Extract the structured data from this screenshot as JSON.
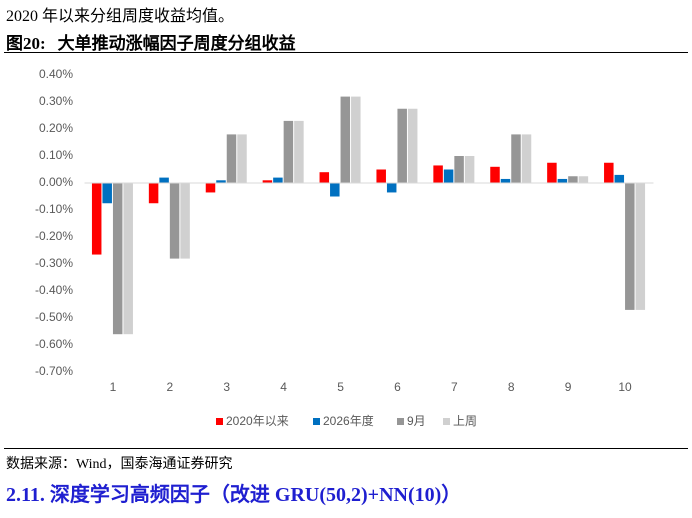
{
  "header": {
    "text": "2020 年以来分组周度收益均值。"
  },
  "figure": {
    "label": "图20:",
    "title": "大单推动涨幅因子周度分组收益"
  },
  "chart_data": {
    "type": "bar",
    "categories": [
      "1",
      "2",
      "3",
      "4",
      "5",
      "6",
      "7",
      "8",
      "9",
      "10"
    ],
    "series": [
      {
        "name": "2020年以来",
        "color": "#ff0000",
        "values": [
          -0.265,
          -0.075,
          -0.035,
          0.01,
          0.04,
          0.05,
          0.065,
          0.06,
          0.075,
          0.075
        ]
      },
      {
        "name": "2026年度",
        "color": "#0070c0",
        "values": [
          -0.075,
          0.02,
          0.01,
          0.02,
          -0.05,
          -0.035,
          0.05,
          0.015,
          0.015,
          0.03
        ]
      },
      {
        "name": "9月",
        "color": "#969696",
        "values": [
          -0.56,
          -0.28,
          0.18,
          0.23,
          0.32,
          0.275,
          0.1,
          0.18,
          0.025,
          -0.47
        ]
      },
      {
        "name": "上周",
        "color": "#d0d0d0",
        "values": [
          -0.56,
          -0.28,
          0.18,
          0.23,
          0.32,
          0.275,
          0.1,
          0.18,
          0.025,
          -0.47
        ]
      }
    ],
    "ylim": [
      -0.7,
      0.4
    ],
    "yticks": [
      {
        "value": 0.4,
        "label": "0.40%"
      },
      {
        "value": 0.3,
        "label": "0.30%"
      },
      {
        "value": 0.2,
        "label": "0.20%"
      },
      {
        "value": 0.1,
        "label": "0.10%"
      },
      {
        "value": 0,
        "label": "0.00%"
      },
      {
        "value": -0.1,
        "label": "-0.10%"
      },
      {
        "value": -0.2,
        "label": "-0.20%"
      },
      {
        "value": -0.3,
        "label": "-0.30%"
      },
      {
        "value": -0.4,
        "label": "-0.40%"
      },
      {
        "value": -0.5,
        "label": "-0.50%"
      },
      {
        "value": -0.6,
        "label": "-0.60%"
      },
      {
        "value": -0.7,
        "label": "-0.70%"
      }
    ],
    "legend": "bottom"
  },
  "source": "数据来源：Wind，国泰海通证券研究",
  "section": {
    "number": "2.11.",
    "title": "深度学习高频因子（改进 GRU(50,2)+NN(10)）"
  }
}
